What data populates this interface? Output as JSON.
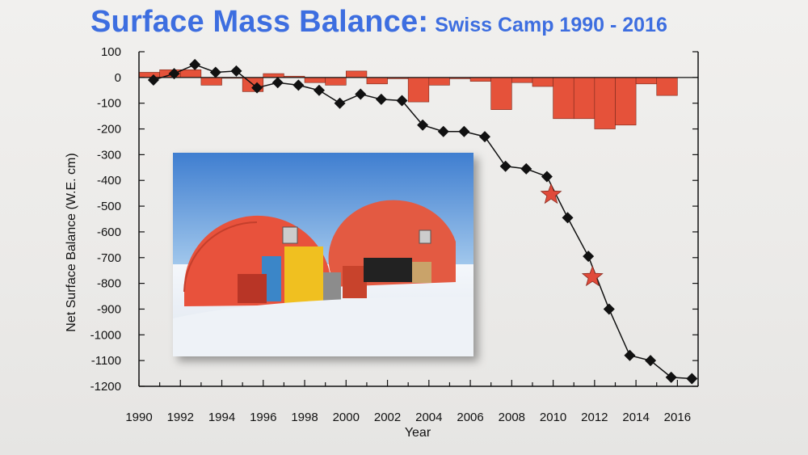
{
  "title": {
    "main": "Surface Mass Balance:",
    "sub": "Swiss Camp 1990 - 2016"
  },
  "colors": {
    "title": "#3d6ee0",
    "bars": "#e5523a",
    "markers": "#111111",
    "stars": "#e04a3a"
  },
  "chart_data": {
    "type": "bar+line",
    "xlabel": "Year",
    "ylabel": "Net Surface Balance (W.E. cm)",
    "xlim": [
      1990,
      2017
    ],
    "ylim": [
      -1200,
      100
    ],
    "x_ticks": [
      1990,
      1992,
      1994,
      1996,
      1998,
      2000,
      2002,
      2004,
      2006,
      2008,
      2010,
      2012,
      2014,
      2016
    ],
    "y_ticks": [
      100,
      0,
      -100,
      -200,
      -300,
      -400,
      -500,
      -600,
      -700,
      -800,
      -900,
      -1000,
      -1100,
      -1200
    ],
    "annual_balance": {
      "years": [
        1991,
        1992,
        1993,
        1994,
        1995,
        1996,
        1997,
        1998,
        1999,
        2000,
        2001,
        2002,
        2003,
        2004,
        2005,
        2006,
        2007,
        2008,
        2009,
        2010,
        2011,
        2012,
        2013,
        2014,
        2015,
        2016
      ],
      "values": [
        20,
        30,
        30,
        -30,
        0,
        -55,
        15,
        5,
        -20,
        -30,
        25,
        -25,
        -5,
        -95,
        -30,
        -5,
        -15,
        -125,
        -20,
        -35,
        -160,
        -160,
        -200,
        -185,
        -25,
        -70
      ]
    },
    "cumulative_balance": {
      "years": [
        1990.7,
        1991.7,
        1992.7,
        1993.7,
        1994.7,
        1995.7,
        1996.7,
        1997.7,
        1998.7,
        1999.7,
        2000.7,
        2001.7,
        2002.7,
        2003.7,
        2004.7,
        2005.7,
        2006.7,
        2007.7,
        2008.7,
        2009.7,
        2010.7,
        2011.7,
        2012.7,
        2013.7,
        2014.7,
        2015.7,
        2016.7
      ],
      "values": [
        -10,
        15,
        50,
        20,
        25,
        -40,
        -20,
        -30,
        -50,
        -100,
        -65,
        -85,
        -90,
        -185,
        -210,
        -210,
        -230,
        -345,
        -355,
        -385,
        -545,
        -695,
        -900,
        -1080,
        -1100,
        -1165,
        -1170
      ]
    },
    "stars": [
      {
        "year": 2009.9,
        "value": -455
      },
      {
        "year": 2011.9,
        "value": -775
      }
    ]
  }
}
